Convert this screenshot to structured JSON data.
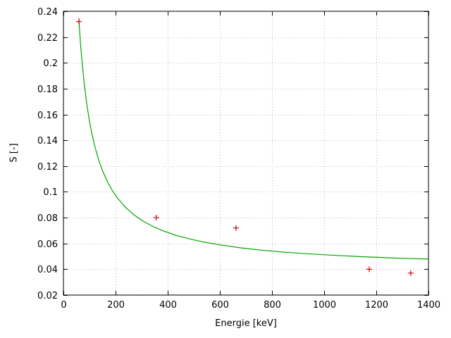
{
  "chart_data": {
    "type": "scatter",
    "title": "",
    "xlabel": "Energie [keV]",
    "ylabel": "S [-]",
    "xlim": [
      0,
      1400
    ],
    "ylim": [
      0.02,
      0.24
    ],
    "xtick_labels": [
      "0",
      "200",
      "400",
      "600",
      "800",
      "1000",
      "1200",
      "1400"
    ],
    "ytick_labels": [
      "0.02",
      "0.04",
      "0.06",
      "0.08",
      "0.1",
      "0.12",
      "0.14",
      "0.16",
      "0.18",
      "0.2",
      "0.22",
      "0.24"
    ],
    "grid": true,
    "legend": "none",
    "series": [
      {
        "name": "fit-curve",
        "type": "line",
        "color": "#00a400",
        "points": [
          [
            59,
            0.2346
          ],
          [
            65,
            0.2166
          ],
          [
            70,
            0.204
          ],
          [
            80,
            0.1835
          ],
          [
            90,
            0.1675
          ],
          [
            100,
            0.1547
          ],
          [
            110,
            0.1443
          ],
          [
            120,
            0.1355
          ],
          [
            135,
            0.1249
          ],
          [
            150,
            0.1164
          ],
          [
            170,
            0.1073
          ],
          [
            190,
            0.1002
          ],
          [
            210,
            0.0945
          ],
          [
            240,
            0.0876
          ],
          [
            270,
            0.0823
          ],
          [
            300,
            0.078
          ],
          [
            340,
            0.0735
          ],
          [
            380,
            0.07
          ],
          [
            430,
            0.0664
          ],
          [
            480,
            0.0637
          ],
          [
            540,
            0.061
          ],
          [
            600,
            0.0589
          ],
          [
            680,
            0.0566
          ],
          [
            760,
            0.0548
          ],
          [
            850,
            0.0532
          ],
          [
            950,
            0.0518
          ],
          [
            1050,
            0.0507
          ],
          [
            1150,
            0.0497
          ],
          [
            1250,
            0.0489
          ],
          [
            1330,
            0.0483
          ],
          [
            1400,
            0.0479
          ]
        ]
      },
      {
        "name": "data-points",
        "type": "scatter",
        "marker": "plus",
        "color": "#cc0000",
        "points": [
          [
            59.5,
            0.232
          ],
          [
            356,
            0.08
          ],
          [
            662,
            0.072
          ],
          [
            1173,
            0.04
          ],
          [
            1332,
            0.037
          ]
        ]
      }
    ]
  },
  "styles": {
    "grid_color": "#b8b8b8",
    "axis_color": "#000000",
    "background": "#ffffff"
  }
}
